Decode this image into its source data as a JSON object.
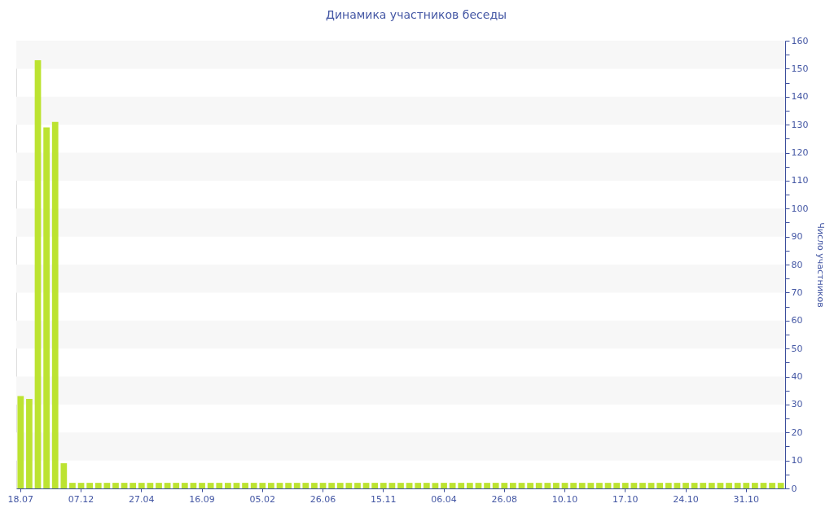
{
  "chart_data": {
    "type": "bar",
    "title": "Динамика участников беседы",
    "ylabel": "Число участников",
    "categories": [
      "18.07",
      null,
      null,
      null,
      null,
      null,
      null,
      "07.12",
      null,
      null,
      null,
      null,
      null,
      null,
      "27.04",
      null,
      null,
      null,
      null,
      null,
      null,
      "16.09",
      null,
      null,
      null,
      null,
      null,
      null,
      "05.02",
      null,
      null,
      null,
      null,
      null,
      null,
      "26.06",
      null,
      null,
      null,
      null,
      null,
      null,
      "15.11",
      null,
      null,
      null,
      null,
      null,
      null,
      "06.04",
      null,
      null,
      null,
      null,
      null,
      null,
      "26.08",
      null,
      null,
      null,
      null,
      null,
      null,
      "10.10",
      null,
      null,
      null,
      null,
      null,
      null,
      "17.10",
      null,
      null,
      null,
      null,
      null,
      null,
      "24.10",
      null,
      null,
      null,
      null,
      null,
      null,
      "31.10",
      null,
      null,
      null,
      null
    ],
    "values": [
      33,
      32,
      153,
      129,
      131,
      9,
      2,
      2,
      2,
      2,
      2,
      2,
      2,
      2,
      2,
      2,
      2,
      2,
      2,
      2,
      2,
      2,
      2,
      2,
      2,
      2,
      2,
      2,
      2,
      2,
      2,
      2,
      2,
      2,
      2,
      2,
      2,
      2,
      2,
      2,
      2,
      2,
      2,
      2,
      2,
      2,
      2,
      2,
      2,
      2,
      2,
      2,
      2,
      2,
      2,
      2,
      2,
      2,
      2,
      2,
      2,
      2,
      2,
      2,
      2,
      2,
      2,
      2,
      2,
      2,
      2,
      2,
      2,
      2,
      2,
      2,
      2,
      2,
      2,
      2,
      2,
      2,
      2,
      2,
      2,
      2,
      2,
      2,
      2
    ],
    "color": "#bce331",
    "ylim": [
      0,
      160
    ],
    "yticks": [
      0,
      {
        "value": 5,
        "label": null
      },
      10,
      {
        "value": 15,
        "label": null
      },
      20,
      {
        "value": 25,
        "label": null
      },
      30,
      {
        "value": 35,
        "label": null
      },
      40,
      {
        "value": 45,
        "label": null
      },
      50,
      {
        "value": 55,
        "label": null
      },
      60,
      {
        "value": 65,
        "label": null
      },
      70,
      {
        "value": 75,
        "label": null
      },
      80,
      {
        "value": 85,
        "label": null
      },
      90,
      {
        "value": 95,
        "label": null
      },
      100,
      {
        "value": 105,
        "label": null
      },
      110,
      {
        "value": 115,
        "label": null
      },
      120,
      {
        "value": 125,
        "label": null
      },
      130,
      {
        "value": 135,
        "label": null
      },
      140,
      {
        "value": 145,
        "label": null
      },
      150,
      {
        "value": 155,
        "label": null
      },
      160
    ],
    "bands": [
      {
        "axis": "y",
        "from": 10,
        "to": 20,
        "color": "#f7f7f7"
      },
      {
        "axis": "y",
        "from": 30,
        "to": 40,
        "color": "#f7f7f7"
      },
      {
        "axis": "y",
        "from": 50,
        "to": 60,
        "color": "#f7f7f7"
      },
      {
        "axis": "y",
        "from": 70,
        "to": 80,
        "color": "#f7f7f7"
      },
      {
        "axis": "y",
        "from": 90,
        "to": 100,
        "color": "#f7f7f7"
      },
      {
        "axis": "y",
        "from": 110,
        "to": 120,
        "color": "#f7f7f7"
      },
      {
        "axis": "y",
        "from": 130,
        "to": 140,
        "color": "#f7f7f7"
      },
      {
        "axis": "y",
        "from": 150,
        "to": 160,
        "color": "#f7f7f7"
      }
    ]
  }
}
